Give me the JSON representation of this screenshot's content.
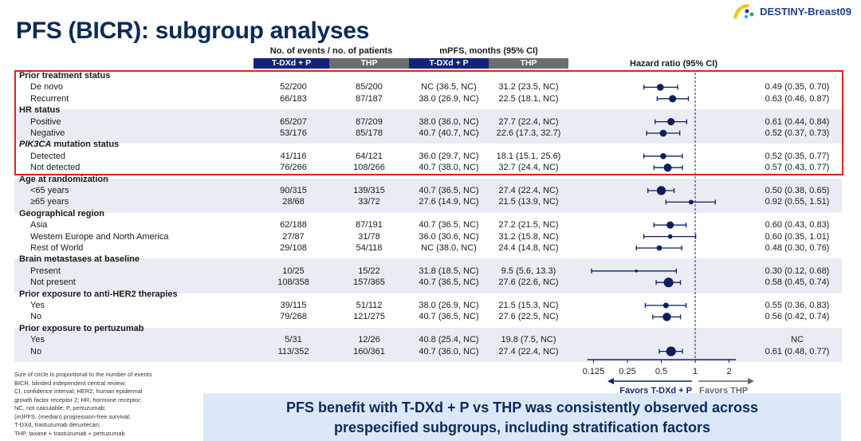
{
  "title": "PFS (BICR): subgroup analyses",
  "logo_text": "DESTINY-Breast09",
  "header": {
    "events_group": "No. of events / no. of patients",
    "mpfs_group": "mPFS, months (95% CI)",
    "arm1": "T-DXd + P",
    "arm2": "THP",
    "hr_label": "Hazard ratio (95% CI)"
  },
  "colors": {
    "arm1": "#12237a",
    "arm2": "#6d6d6d",
    "marker": "#0b1f5c",
    "highlight_box": "#e02020",
    "banner": "#dbe8f8"
  },
  "chart_data": {
    "type": "forest",
    "x_scale": "log2",
    "xlim": [
      0.125,
      2.2
    ],
    "ticks": [
      "0.125",
      "0.25",
      "0.5",
      "1",
      "2"
    ],
    "reference_line": 1,
    "favors_left": "Favors T-DXd + P",
    "favors_right": "Favors THP",
    "marker_note": "Size of circle is proportional to the number of events",
    "rows": [
      {
        "label": "Prior treatment status",
        "group": true
      },
      {
        "label": "De novo",
        "ev1": "52/200",
        "ev2": "85/200",
        "m1": "NC (36.5, NC)",
        "m2": "31.2 (23.5, NC)",
        "hr": 0.49,
        "lo": 0.35,
        "hi": 0.7,
        "hr_text": "0.49 (0.35, 0.70)"
      },
      {
        "label": "Recurrent",
        "ev1": "66/183",
        "ev2": "87/187",
        "m1": "38.0 (26.9, NC)",
        "m2": "22.5 (18.1, NC)",
        "hr": 0.63,
        "lo": 0.46,
        "hi": 0.87,
        "hr_text": "0.63 (0.46, 0.87)"
      },
      {
        "label": "HR status",
        "group": true
      },
      {
        "label": "Positive",
        "ev1": "65/207",
        "ev2": "87/209",
        "m1": "38.0 (36.0, NC)",
        "m2": "27.7 (22.4, NC)",
        "hr": 0.61,
        "lo": 0.44,
        "hi": 0.84,
        "hr_text": "0.61 (0.44, 0.84)"
      },
      {
        "label": "Negative",
        "ev1": "53/176",
        "ev2": "85/178",
        "m1": "40.7 (40.7, NC)",
        "m2": "22.6 (17.3, 32.7)",
        "hr": 0.52,
        "lo": 0.37,
        "hi": 0.73,
        "hr_text": "0.52 (0.37, 0.73)"
      },
      {
        "label": "PIK3CA mutation status",
        "group": true,
        "italic_prefix": "PIK3CA"
      },
      {
        "label": "Detected",
        "ev1": "41/116",
        "ev2": "64/121",
        "m1": "36.0 (29.7, NC)",
        "m2": "18.1 (15.1, 25.6)",
        "hr": 0.52,
        "lo": 0.35,
        "hi": 0.77,
        "hr_text": "0.52 (0.35, 0.77)"
      },
      {
        "label": "Not detected",
        "ev1": "76/266",
        "ev2": "108/266",
        "m1": "40.7 (38.0, NC)",
        "m2": "32.7 (24.4, NC)",
        "hr": 0.57,
        "lo": 0.43,
        "hi": 0.77,
        "hr_text": "0.57 (0.43, 0.77)"
      },
      {
        "label": "Age at randomization",
        "group": true
      },
      {
        "label": "<65 years",
        "ev1": "90/315",
        "ev2": "139/315",
        "m1": "40.7 (36.5, NC)",
        "m2": "27.4 (22.4, NC)",
        "hr": 0.5,
        "lo": 0.38,
        "hi": 0.65,
        "hr_text": "0.50 (0.38, 0.65)"
      },
      {
        "label": "≥65 years",
        "ev1": "28/68",
        "ev2": "33/72",
        "m1": "27.6 (14.9, NC)",
        "m2": "21.5 (13.9, NC)",
        "hr": 0.92,
        "lo": 0.55,
        "hi": 1.51,
        "hr_text": "0.92 (0.55, 1.51)"
      },
      {
        "label": "Geographical region",
        "group": true
      },
      {
        "label": "Asia",
        "ev1": "62/188",
        "ev2": "87/191",
        "m1": "40.7 (36.5, NC)",
        "m2": "27.2 (21.5, NC)",
        "hr": 0.6,
        "lo": 0.43,
        "hi": 0.83,
        "hr_text": "0.60 (0.43, 0.83)"
      },
      {
        "label": "Western Europe and North America",
        "ev1": "27/87",
        "ev2": "31/78",
        "m1": "36.0 (30.6, NC)",
        "m2": "31.2 (15.8, NC)",
        "hr": 0.6,
        "lo": 0.35,
        "hi": 1.01,
        "hr_text": "0.60 (0.35, 1.01)"
      },
      {
        "label": "Rest of World",
        "ev1": "29/108",
        "ev2": "54/118",
        "m1": "NC (38.0, NC)",
        "m2": "24.4 (14.8, NC)",
        "hr": 0.48,
        "lo": 0.3,
        "hi": 0.76,
        "hr_text": "0.48 (0.30, 0.76)"
      },
      {
        "label": "Brain metastases at baseline",
        "group": true
      },
      {
        "label": "Present",
        "ev1": "10/25",
        "ev2": "15/22",
        "m1": "31.8 (18.5, NC)",
        "m2": "9.5 (5.6, 13.3)",
        "hr": 0.3,
        "lo": 0.12,
        "hi": 0.68,
        "hr_text": "0.30 (0.12, 0.68)"
      },
      {
        "label": "Not present",
        "ev1": "108/358",
        "ev2": "157/365",
        "m1": "40.7 (36.5, NC)",
        "m2": "27.6 (22.6, NC)",
        "hr": 0.58,
        "lo": 0.45,
        "hi": 0.74,
        "hr_text": "0.58 (0.45, 0.74)"
      },
      {
        "label": "Prior exposure to anti-HER2 therapies",
        "group": true
      },
      {
        "label": "Yes",
        "ev1": "39/115",
        "ev2": "51/112",
        "m1": "38.0 (26.9, NC)",
        "m2": "21.5 (15.3, NC)",
        "hr": 0.55,
        "lo": 0.36,
        "hi": 0.83,
        "hr_text": "0.55 (0.36, 0.83)"
      },
      {
        "label": "No",
        "ev1": "79/268",
        "ev2": "121/275",
        "m1": "40.7 (36.5, NC)",
        "m2": "27.6 (22.5, NC)",
        "hr": 0.56,
        "lo": 0.42,
        "hi": 0.74,
        "hr_text": "0.56 (0.42, 0.74)"
      },
      {
        "label": "Prior exposure to pertuzumab",
        "group": true
      },
      {
        "label": "Yes",
        "ev1": "5/31",
        "ev2": "12/26",
        "m1": "40.8 (25.4, NC)",
        "m2": "19.8 (7.5, NC)",
        "hr": null,
        "hr_text": "NC"
      },
      {
        "label": "No",
        "ev1": "113/352",
        "ev2": "160/361",
        "m1": "40.7 (36.0, NC)",
        "m2": "27.4 (22.4, NC)",
        "hr": 0.61,
        "lo": 0.48,
        "hi": 0.77,
        "hr_text": "0.61 (0.48, 0.77)"
      }
    ]
  },
  "footnote": [
    "Size of circle is proportional to the number of events",
    "BICR, blinded independent central review;",
    "CI, confidence interval; HER2, human epidermal",
    "growth factor receptor 2; HR, hormone receptor;",
    "NC, not calculable; P, pertuzumab;",
    "(m)PFS, (median) progression-free survival;",
    "T-DXd, trastuzumab deruxtecan;",
    "THP, taxane + trastuzumab + pertuzumab"
  ],
  "banner": [
    "PFS benefit with T-DXd + P vs THP was consistently observed across",
    "prespecified subgroups, including stratification factors"
  ]
}
